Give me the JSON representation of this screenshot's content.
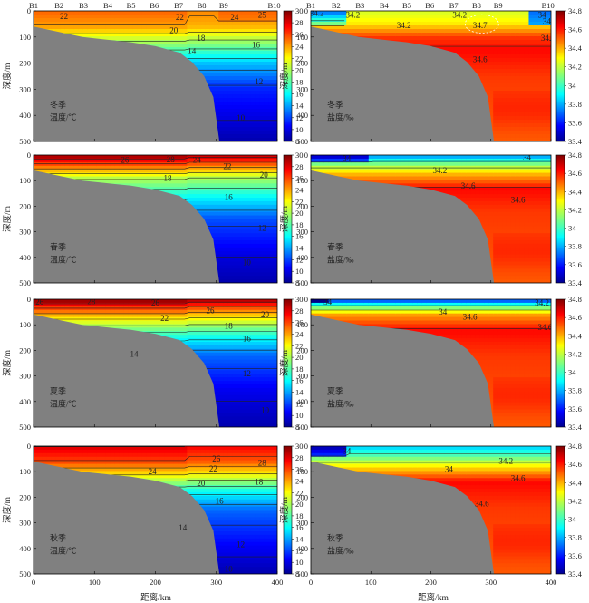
{
  "chart_data": {
    "type": "heatmap",
    "x_axis": {
      "label": "距离/km",
      "ticks": [
        0,
        100,
        200,
        300,
        400
      ],
      "range": [
        0,
        400
      ]
    },
    "y_axis": {
      "label": "深度/m",
      "ticks": [
        0,
        100,
        200,
        300,
        400,
        500
      ],
      "range": [
        0,
        500
      ],
      "inverted": true
    },
    "stations": [
      {
        "name": "B1",
        "km": 0
      },
      {
        "name": "B2",
        "km": 42
      },
      {
        "name": "B3",
        "km": 82
      },
      {
        "name": "B4",
        "km": 122
      },
      {
        "name": "B5",
        "km": 160
      },
      {
        "name": "B6",
        "km": 198
      },
      {
        "name": "B7",
        "km": 238
      },
      {
        "name": "B8",
        "km": 276
      },
      {
        "name": "B9",
        "km": 312
      },
      {
        "name": "B10",
        "km": 395
      }
    ],
    "bathymetry": [
      [
        0,
        60
      ],
      [
        40,
        80
      ],
      [
        80,
        100
      ],
      [
        120,
        110
      ],
      [
        160,
        120
      ],
      [
        200,
        135
      ],
      [
        240,
        160
      ],
      [
        260,
        195
      ],
      [
        280,
        250
      ],
      [
        295,
        330
      ],
      [
        305,
        500
      ]
    ],
    "colormap": "jet",
    "temperature_colorbar": {
      "min": 8,
      "max": 30,
      "ticks": [
        8,
        10,
        12,
        14,
        16,
        18,
        20,
        22,
        24,
        26,
        28,
        30
      ],
      "unit": "℃"
    },
    "salinity_colorbar": {
      "min": 33.4,
      "max": 34.8,
      "ticks": [
        33.4,
        33.6,
        33.8,
        34,
        34.2,
        34.4,
        34.6,
        34.8
      ],
      "unit": "‰"
    },
    "panels": [
      {
        "season": "冬季",
        "variable": "温度/℃",
        "contour_labels": [
          "22",
          "20",
          "22",
          "24",
          "25",
          "18",
          "16",
          "14",
          "12",
          "10"
        ]
      },
      {
        "season": "冬季",
        "variable": "盐度/‰",
        "contour_labels": [
          "34.2",
          "34.2",
          "34.2",
          "34.2",
          "34.7",
          "34",
          "34.2",
          "34.6",
          "34.6"
        ]
      },
      {
        "season": "春季",
        "variable": "温度/℃",
        "contour_labels": [
          "26",
          "28",
          "24",
          "22",
          "20",
          "18",
          "16",
          "12",
          "10"
        ]
      },
      {
        "season": "春季",
        "variable": "盐度/‰",
        "contour_labels": [
          "34",
          "34",
          "34.2",
          "34.6",
          "34.6"
        ]
      },
      {
        "season": "夏季",
        "variable": "温度/℃",
        "contour_labels": [
          "26",
          "28",
          "26",
          "22",
          "26",
          "20",
          "18",
          "16",
          "14",
          "12",
          "10"
        ]
      },
      {
        "season": "夏季",
        "variable": "盐度/‰",
        "contour_labels": [
          "34",
          "34.2",
          "34",
          "34.6",
          "34.6"
        ]
      },
      {
        "season": "秋季",
        "variable": "温度/℃",
        "contour_labels": [
          "26",
          "28",
          "24",
          "22",
          "20",
          "18",
          "16",
          "14",
          "12",
          "10"
        ]
      },
      {
        "season": "秋季",
        "variable": "盐度/‰",
        "contour_labels": [
          "34",
          "34",
          "34.2",
          "34.6",
          "34.6"
        ]
      }
    ],
    "land_color": "#808080"
  }
}
